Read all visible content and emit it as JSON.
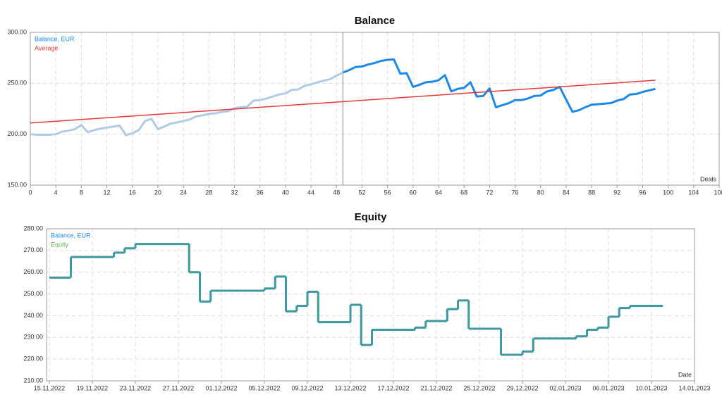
{
  "chart_data": [
    {
      "type": "line",
      "title": "Balance",
      "x_label": "Deals",
      "x": [
        0,
        1,
        2,
        3,
        4,
        5,
        6,
        7,
        8,
        9,
        10,
        11,
        12,
        13,
        14,
        15,
        16,
        17,
        18,
        19,
        20,
        21,
        22,
        23,
        24,
        25,
        26,
        27,
        28,
        29,
        30,
        31,
        32,
        33,
        34,
        35,
        36,
        37,
        38,
        39,
        40,
        41,
        42,
        43,
        44,
        45,
        46,
        47,
        48,
        49,
        50,
        51,
        52,
        53,
        54,
        55,
        56,
        57,
        58,
        59,
        60,
        61,
        62,
        63,
        64,
        65,
        66,
        67,
        68,
        69,
        70,
        71,
        72,
        73,
        74,
        75,
        76,
        77,
        78,
        79,
        80,
        81,
        82,
        83,
        84,
        85,
        86,
        87,
        88,
        89,
        90,
        91,
        92,
        93,
        94,
        95,
        96,
        97,
        98
      ],
      "series": [
        {
          "name": "Balance, EUR",
          "color": "#1e88e5",
          "faded_color": "#b0cbe6",
          "values": [
            200,
            199.5,
            199.5,
            199.5,
            200,
            202.5,
            203.5,
            205,
            209,
            202,
            204,
            205.5,
            206.5,
            207.5,
            208.5,
            199,
            201,
            204,
            213,
            215,
            205,
            207.5,
            210.5,
            211.5,
            213,
            214.5,
            217.5,
            218.5,
            220,
            220.5,
            222,
            222.5,
            225.5,
            226.5,
            227,
            233,
            233.5,
            235,
            237,
            239,
            240,
            243.5,
            244,
            247.5,
            249,
            251,
            252.5,
            254,
            257.5,
            260.5,
            263,
            266,
            266.5,
            268.5,
            270,
            272,
            273,
            273.5,
            259.5,
            260,
            246.5,
            248.5,
            251,
            251.5,
            253,
            258,
            242,
            244.5,
            245.5,
            251,
            237,
            237.5,
            245,
            226.5,
            228.5,
            230.5,
            233.5,
            233.5,
            235,
            237.5,
            238,
            242,
            243.5,
            246.5,
            234,
            222,
            223.5,
            226.5,
            229,
            229.5,
            230,
            230.5,
            233,
            234.5,
            239,
            239.5,
            241.5,
            243,
            244.5
          ]
        },
        {
          "name": "Average",
          "color": "#e53935",
          "x": [
            0,
            98
          ],
          "values": [
            211,
            253
          ]
        }
      ],
      "cursor_x": 49,
      "xlim": [
        0,
        108
      ],
      "xticks": [
        0,
        4,
        8,
        12,
        16,
        20,
        24,
        28,
        32,
        36,
        40,
        44,
        48,
        52,
        56,
        60,
        64,
        68,
        72,
        76,
        80,
        84,
        88,
        92,
        96,
        100,
        104,
        108
      ],
      "ylim": [
        150,
        300
      ],
      "yticks": [
        {
          "value": 150,
          "label": "150.00"
        },
        {
          "value": 200,
          "label": "200.00"
        },
        {
          "value": 250,
          "label": "250.00"
        },
        {
          "value": 300,
          "label": "300.00"
        }
      ],
      "grid": true
    },
    {
      "type": "line",
      "step": true,
      "title": "Equity",
      "x_label": "Date",
      "x": [
        "2022-11-15",
        "2022-11-17",
        "2022-11-21",
        "2022-11-22",
        "2022-11-23",
        "2022-11-28",
        "2022-11-29",
        "2022-11-30",
        "2022-12-05",
        "2022-12-06",
        "2022-12-07",
        "2022-12-08",
        "2022-12-09",
        "2022-12-10",
        "2022-12-13",
        "2022-12-14",
        "2022-12-15",
        "2022-12-19",
        "2022-12-20",
        "2022-12-22",
        "2022-12-23",
        "2022-12-24",
        "2022-12-27",
        "2022-12-29",
        "2022-12-30",
        "2023-01-03",
        "2023-01-04",
        "2023-01-05",
        "2023-01-06",
        "2023-01-07",
        "2023-01-08",
        "2023-01-11"
      ],
      "series": [
        {
          "name": "Balance, EUR",
          "color": "#1e88e5",
          "values": [
            257.5,
            267,
            269,
            271,
            273,
            260,
            246.5,
            251.5,
            252.5,
            258,
            242,
            244.5,
            251,
            237,
            245,
            226.5,
            233.5,
            234.5,
            237.5,
            243,
            247,
            234,
            222,
            223.5,
            229.5,
            230.5,
            233.5,
            234.5,
            239.5,
            243.5,
            244.5,
            244.5
          ]
        },
        {
          "name": "Equity",
          "color": "#6ab04c",
          "values": [
            257.5,
            267,
            269,
            271,
            273,
            260,
            246.5,
            251.5,
            252.5,
            258,
            242,
            244.5,
            251,
            237,
            245,
            226.5,
            233.5,
            234.5,
            237.5,
            243,
            247,
            234,
            222,
            223.5,
            229.5,
            230.5,
            233.5,
            234.5,
            239.5,
            243.5,
            244.5,
            244.5
          ]
        }
      ],
      "xlim": [
        "2022-11-15",
        "2023-01-14"
      ],
      "xticks": [
        {
          "value": "2022-11-15",
          "label": "15.11.2022"
        },
        {
          "value": "2022-11-19",
          "label": "19.11.2022"
        },
        {
          "value": "2022-11-23",
          "label": "23.11.2022"
        },
        {
          "value": "2022-11-27",
          "label": "27.11.2022"
        },
        {
          "value": "2022-12-01",
          "label": "01.12.2022"
        },
        {
          "value": "2022-12-05",
          "label": "05.12.2022"
        },
        {
          "value": "2022-12-09",
          "label": "09.12.2022"
        },
        {
          "value": "2022-12-13",
          "label": "13.12.2022"
        },
        {
          "value": "2022-12-17",
          "label": "17.12.2022"
        },
        {
          "value": "2022-12-21",
          "label": "21.12.2022"
        },
        {
          "value": "2022-12-25",
          "label": "25.12.2022"
        },
        {
          "value": "2022-12-29",
          "label": "29.12.2022"
        },
        {
          "value": "2023-01-02",
          "label": "02.01.2023"
        },
        {
          "value": "2023-01-06",
          "label": "06.01.2023"
        },
        {
          "value": "2023-01-10",
          "label": "10.01.2023"
        },
        {
          "value": "2023-01-14",
          "label": "14.01.2023"
        }
      ],
      "ylim": [
        210,
        280
      ],
      "yticks": [
        {
          "value": 210,
          "label": "210.00"
        },
        {
          "value": 220,
          "label": "220.00"
        },
        {
          "value": 230,
          "label": "230.00"
        },
        {
          "value": 240,
          "label": "240.00"
        },
        {
          "value": 250,
          "label": "250.00"
        },
        {
          "value": 260,
          "label": "260.00"
        },
        {
          "value": 270,
          "label": "270.00"
        },
        {
          "value": 280,
          "label": "280.00"
        }
      ],
      "grid": true
    }
  ]
}
